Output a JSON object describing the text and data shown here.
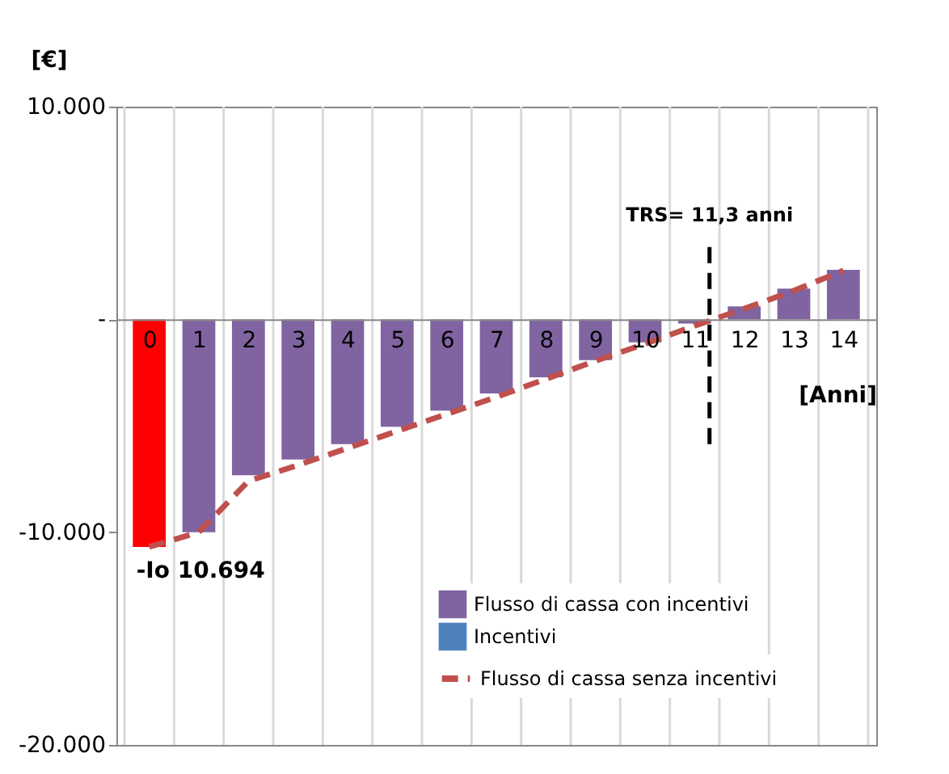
{
  "chart_data": {
    "type": "bar",
    "stacked": true,
    "ylabel": "[€]",
    "xlabel": "[Anni]",
    "x": [
      0,
      1,
      2,
      3,
      4,
      5,
      6,
      7,
      8,
      9,
      10,
      11,
      12,
      13,
      14
    ],
    "xlim": [
      -0.5,
      14.5
    ],
    "xticks": [
      0,
      1,
      2,
      3,
      4,
      5,
      6,
      7,
      8,
      9,
      10,
      11,
      12,
      13,
      14
    ],
    "ylim": [
      -20000,
      10000
    ],
    "yticks": [
      {
        "value": 10000,
        "label": "10.000"
      },
      {
        "value": 0,
        "label": "-"
      },
      {
        "value": -10000,
        "label": "-10.000"
      },
      {
        "value": -20000,
        "label": "-20.000"
      }
    ],
    "grid": "x",
    "legend": "bottom right",
    "series": [
      {
        "name": "Flusso di cassa con incentivi",
        "color": "#8064a2",
        "colors": [
          "#ff0000",
          "#8064a2",
          "#8064a2",
          "#8064a2",
          "#8064a2",
          "#8064a2",
          "#8064a2",
          "#8064a2",
          "#8064a2",
          "#8064a2",
          "#8064a2",
          "#8064a2",
          "#8064a2",
          "#8064a2",
          "#8064a2"
        ],
        "values": [
          -10694,
          -10000,
          -7330,
          -6590,
          -5860,
          -5050,
          -4290,
          -3480,
          -2720,
          -1910,
          -1080,
          -200,
          610,
          1450,
          2330
        ]
      },
      {
        "name": "Incentivi",
        "color": "#4f81bd",
        "values": [
          0,
          0,
          0,
          0,
          0,
          0,
          0,
          0,
          0,
          0,
          0,
          0,
          0,
          0,
          0
        ]
      },
      {
        "name": "Flusso di cassa senza incentivi",
        "type": "line",
        "line_style": "dashed",
        "color": "#c0504d",
        "values": [
          -10694,
          -10000,
          -7600,
          -6850,
          -6050,
          -5250,
          -4450,
          -3650,
          -2800,
          -1950,
          -1150,
          -300,
          500,
          1350,
          2300
        ]
      }
    ],
    "ref_lines": [
      {
        "axis": "x",
        "value": 11.3,
        "label": "TRS= 11,3 anni",
        "color": "#000000",
        "line_style": "dashed"
      }
    ],
    "annotations": [
      {
        "text": "-Io 10.694",
        "x": 0,
        "y": -10694
      }
    ]
  }
}
